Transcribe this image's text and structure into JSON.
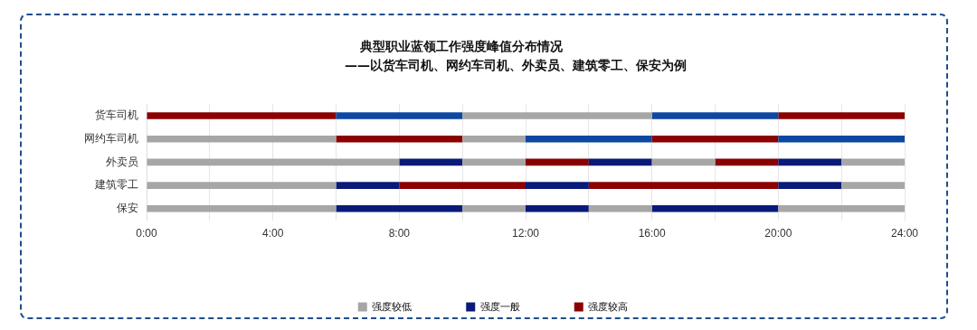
{
  "chart_data": {
    "type": "bar",
    "orientation": "horizontal",
    "title": "典型职业蓝领工作强度峰值分布情况",
    "subtitle": "——以货车司机、网约车司机、外卖员、建筑零工、保安为例",
    "categories": [
      "货车司机",
      "网约车司机",
      "外卖员",
      "建筑零工",
      "保安"
    ],
    "series": [
      {
        "name": "强度较低",
        "color": "#a6a6a6",
        "base": [
          10,
          0,
          0,
          0,
          0
        ],
        "values": [
          6,
          6,
          8,
          6,
          6
        ]
      },
      {
        "color": "#a6a6a6",
        "base": [
          null,
          10,
          10,
          22,
          10
        ],
        "values": [
          null,
          2,
          2,
          2,
          2
        ]
      },
      {
        "color": "#a6a6a6",
        "base": [
          null,
          null,
          16,
          null,
          14
        ],
        "values": [
          null,
          null,
          2,
          null,
          2
        ]
      },
      {
        "color": "#a6a6a6",
        "base": [
          null,
          null,
          22,
          null,
          20
        ],
        "values": [
          null,
          null,
          2,
          null,
          4
        ]
      },
      {
        "name": "强度一般",
        "color": "#0a1a78",
        "colors": [
          "#0d47a1",
          "#0d47a1",
          "#0a1a78",
          "#0a1a78",
          "#0a1a78"
        ],
        "base": [
          6,
          12,
          8,
          6,
          6
        ],
        "values": [
          4,
          4,
          2,
          2,
          4
        ]
      },
      {
        "color": "#0a1a78",
        "colors": [
          "#0d47a1",
          "#0d47a1",
          "#0a1a78",
          "#0a1a78",
          "#0a1a78"
        ],
        "base": [
          16,
          20,
          14,
          12,
          12
        ],
        "values": [
          4,
          4,
          2,
          2,
          2
        ]
      },
      {
        "color": "#0a1a78",
        "base": [
          null,
          null,
          20,
          20,
          16
        ],
        "values": [
          null,
          null,
          2,
          2,
          4
        ]
      },
      {
        "name": "强度较高",
        "color": "#8b0000",
        "base": [
          0,
          6,
          12,
          8,
          null
        ],
        "values": [
          6,
          4,
          2,
          4,
          null
        ]
      },
      {
        "color": "#8b0000",
        "base": [
          20,
          16,
          18,
          14,
          null
        ],
        "values": [
          4,
          4,
          2,
          6,
          null
        ]
      }
    ],
    "xlim": [
      0,
      24
    ],
    "xticks": [
      {
        "value": 0,
        "label": "0:00"
      },
      {
        "value": 2,
        "label": null
      },
      {
        "value": 4,
        "label": "4:00"
      },
      {
        "value": 6,
        "label": null
      },
      {
        "value": 8,
        "label": "8:00"
      },
      {
        "value": 10,
        "label": null
      },
      {
        "value": 12,
        "label": "12:00"
      },
      {
        "value": 14,
        "label": null
      },
      {
        "value": 16,
        "label": "16:00"
      },
      {
        "value": 18,
        "label": null
      },
      {
        "value": 20,
        "label": "20:00"
      },
      {
        "value": 22,
        "label": null
      },
      {
        "value": 24,
        "label": "24:00"
      }
    ],
    "grid": "x",
    "legend": "bottom"
  }
}
